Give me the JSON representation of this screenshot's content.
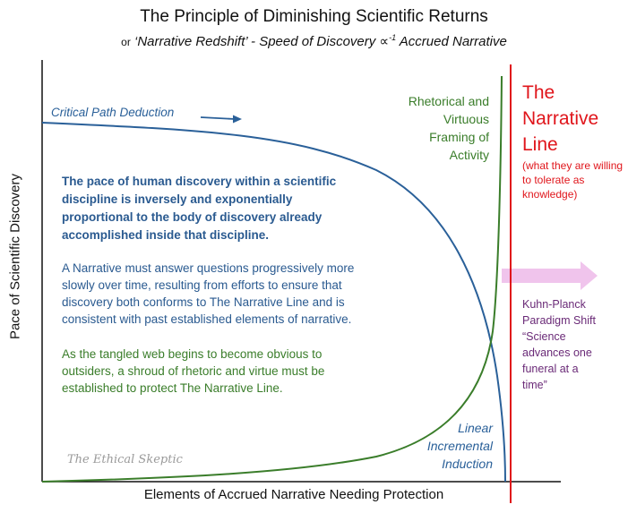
{
  "title": "The Principle of Diminishing Scientific Returns",
  "subtitle": {
    "prefix": "or",
    "text": "‘Narrative Redshift’ - Speed of Discovery ∝",
    "exponent": "-1",
    "suffix": "Accrued Narrative"
  },
  "axes": {
    "ylabel": "Pace of Scientific Discovery",
    "xlabel": "Elements of Accrued Narrative Needing Protection"
  },
  "curves": {
    "critical_path": {
      "label": "Critical Path Deduction",
      "color": "#2a6099"
    },
    "rhetorical": {
      "label_lines": [
        "Rhetorical and",
        "Virtuous",
        "Framing of",
        "Activity"
      ],
      "color": "#3a7d2a"
    },
    "linear": {
      "label_lines": [
        "Linear",
        "Incremental",
        "Induction"
      ],
      "color": "#2a6099"
    }
  },
  "narrative_line": {
    "title_lines": [
      "The",
      "Narrative",
      "Line"
    ],
    "subtitle": "(what they are willing to tolerate as knowledge)",
    "color": "#e0151b"
  },
  "shift": {
    "label_lines": [
      "Kuhn-Planck",
      "Paradigm Shift",
      "“Science",
      "advances one",
      "funeral at a",
      "time”"
    ],
    "color": "#6a2a77",
    "arrow_color": "#f0c4ec"
  },
  "paragraphs": {
    "p1": "The pace of human discovery within a scientific discipline is inversely and exponentially proportional to the body of discovery already accomplished inside that discipline.",
    "p2": "A Narrative must answer questions progressively more slowly over time, resulting from efforts to ensure that discovery both conforms to The Narrative Line and is consistent with past established elements of narrative.",
    "p3": "As the tangled web begins to become obvious to outsiders, a shroud of rhetoric and virtue must be established to protect The Narrative Line."
  },
  "watermark": "The Ethical Skeptic"
}
